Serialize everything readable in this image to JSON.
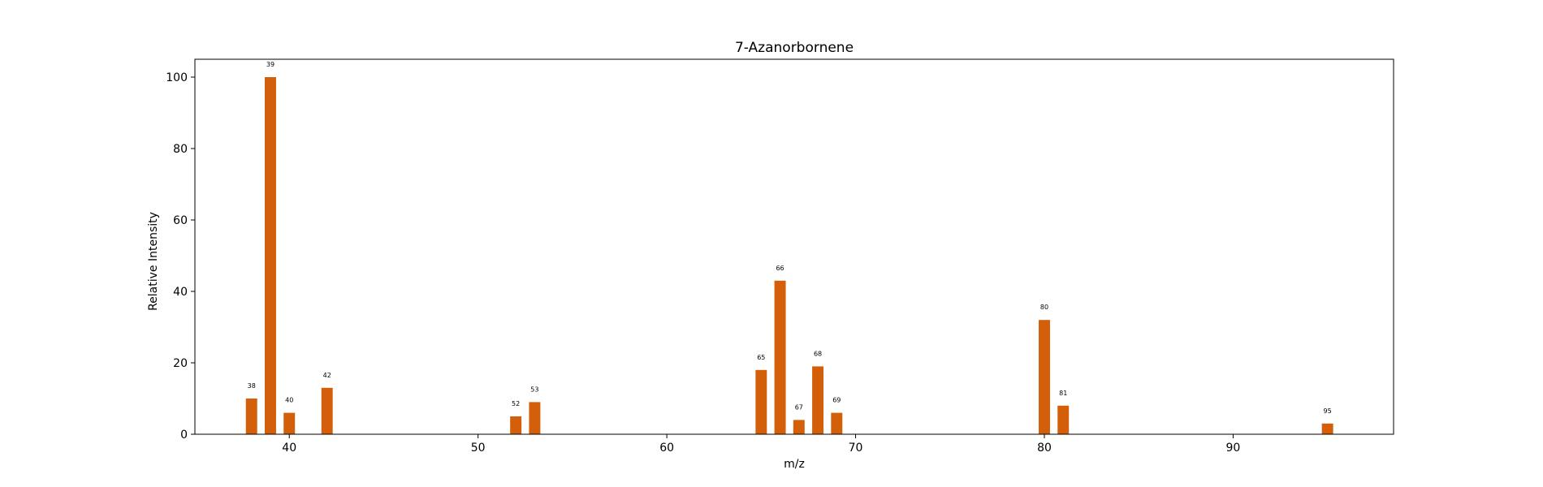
{
  "chart_data": {
    "type": "bar",
    "title": "7-Azanorbornene",
    "xlabel": "m/z",
    "ylabel": "Relative Intensity",
    "xlim": [
      35,
      98.5
    ],
    "ylim": [
      0,
      105
    ],
    "xticks": [
      40,
      50,
      60,
      70,
      80,
      90
    ],
    "yticks": [
      0,
      20,
      40,
      60,
      80,
      100
    ],
    "bar_color": "#d35f0a",
    "grid": false,
    "points": [
      {
        "x": 38,
        "y": 10
      },
      {
        "x": 39,
        "y": 100
      },
      {
        "x": 40,
        "y": 6
      },
      {
        "x": 42,
        "y": 13
      },
      {
        "x": 52,
        "y": 5
      },
      {
        "x": 53,
        "y": 9
      },
      {
        "x": 65,
        "y": 18
      },
      {
        "x": 66,
        "y": 43
      },
      {
        "x": 67,
        "y": 4
      },
      {
        "x": 68,
        "y": 19
      },
      {
        "x": 69,
        "y": 6
      },
      {
        "x": 80,
        "y": 32
      },
      {
        "x": 81,
        "y": 8
      },
      {
        "x": 95,
        "y": 3
      }
    ]
  }
}
